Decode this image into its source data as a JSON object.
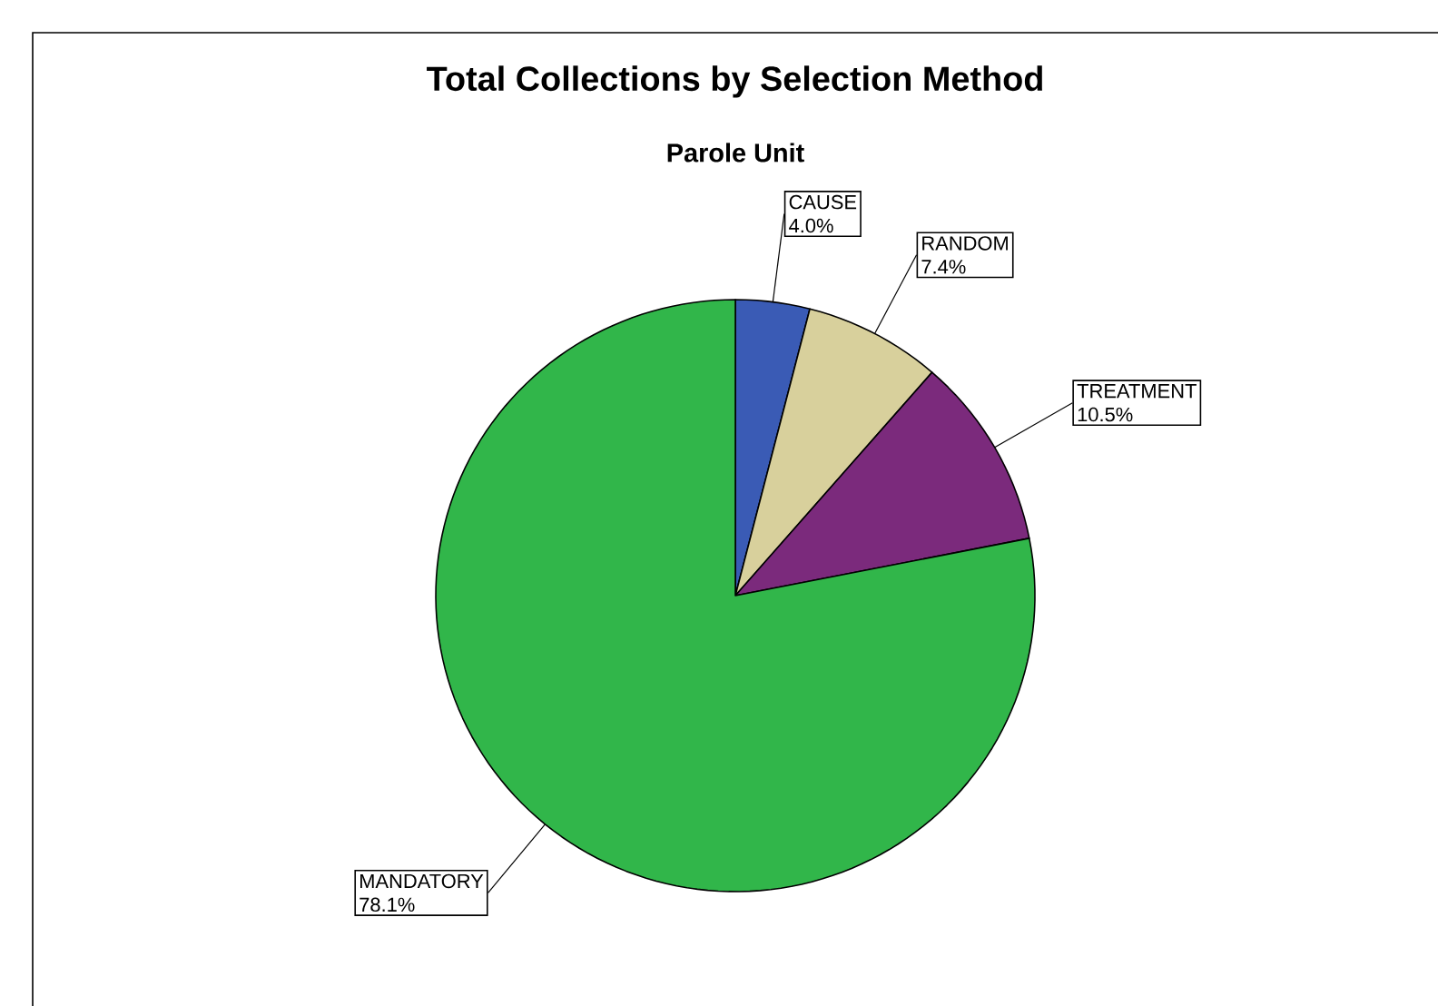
{
  "chart_data": {
    "type": "pie",
    "title": "Total Collections by Selection Method",
    "subtitle": "Parole Unit",
    "categories": [
      "CAUSE",
      "RANDOM",
      "TREATMENT",
      "MANDATORY"
    ],
    "values": [
      4.0,
      7.4,
      10.5,
      78.1
    ],
    "colors": [
      "#3a5bb5",
      "#d8d09c",
      "#7b2a7c",
      "#31b64a"
    ],
    "value_labels": [
      "4.0%",
      "7.4%",
      "10.5%",
      "78.1%"
    ]
  }
}
